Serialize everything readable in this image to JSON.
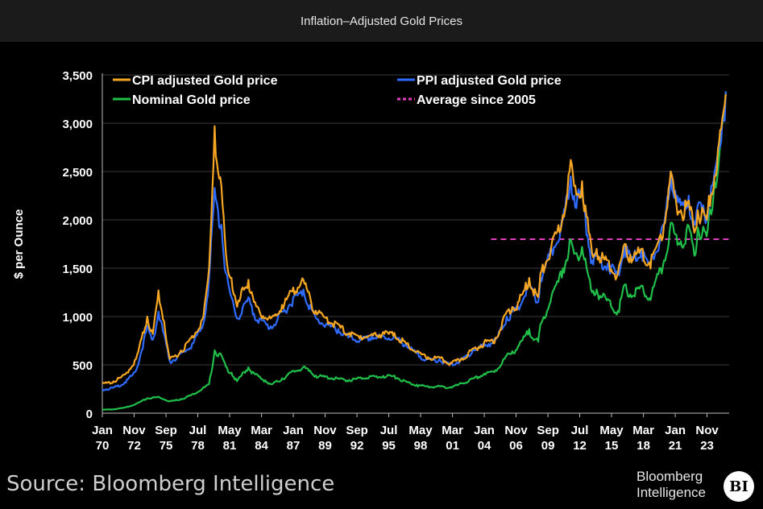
{
  "window": {
    "title": "Inflation–Adjusted Gold Prices"
  },
  "footer": {
    "source": "Source: Bloomberg Intelligence",
    "brand_line1": "Bloomberg",
    "brand_line2": "Intelligence",
    "badge": "BI"
  },
  "chart_data": {
    "type": "line",
    "title": "",
    "xlabel": "",
    "ylabel": "$ per Ounce",
    "ylim": [
      0,
      3500
    ],
    "yticks": [
      0,
      500,
      1000,
      1500,
      2000,
      2500,
      3000,
      3500
    ],
    "ytick_labels": [
      "0",
      "500",
      "1,000",
      "1,500",
      "2,000",
      "2,500",
      "3,000",
      "3,500"
    ],
    "xlim": [
      1970.0,
      2025.8
    ],
    "xticks": [
      {
        "t": 1970.0,
        "l1": "Jan",
        "l2": "70"
      },
      {
        "t": 1972.83,
        "l1": "Nov",
        "l2": "72"
      },
      {
        "t": 1975.67,
        "l1": "Sep",
        "l2": "75"
      },
      {
        "t": 1978.5,
        "l1": "Jul",
        "l2": "78"
      },
      {
        "t": 1981.33,
        "l1": "May",
        "l2": "81"
      },
      {
        "t": 1984.17,
        "l1": "Mar",
        "l2": "84"
      },
      {
        "t": 1987.0,
        "l1": "Jan",
        "l2": "87"
      },
      {
        "t": 1989.83,
        "l1": "Nov",
        "l2": "89"
      },
      {
        "t": 1992.67,
        "l1": "Sep",
        "l2": "92"
      },
      {
        "t": 1995.5,
        "l1": "Jul",
        "l2": "95"
      },
      {
        "t": 1998.33,
        "l1": "May",
        "l2": "98"
      },
      {
        "t": 2001.17,
        "l1": "Mar",
        "l2": "01"
      },
      {
        "t": 2004.0,
        "l1": "Jan",
        "l2": "04"
      },
      {
        "t": 2006.83,
        "l1": "Nov",
        "l2": "06"
      },
      {
        "t": 2009.67,
        "l1": "Sep",
        "l2": "09"
      },
      {
        "t": 2012.5,
        "l1": "Jul",
        "l2": "12"
      },
      {
        "t": 2015.33,
        "l1": "May",
        "l2": "15"
      },
      {
        "t": 2018.17,
        "l1": "Mar",
        "l2": "18"
      },
      {
        "t": 2021.0,
        "l1": "Jan",
        "l2": "21"
      },
      {
        "t": 2023.83,
        "l1": "Nov",
        "l2": "23"
      }
    ],
    "legend": [
      {
        "name": "CPI adjusted Gold price",
        "color": "#f5a623",
        "style": "solid"
      },
      {
        "name": "PPI adjusted Gold price",
        "color": "#2f6bff",
        "style": "solid"
      },
      {
        "name": "Nominal Gold price",
        "color": "#1fbf4a",
        "style": "solid"
      },
      {
        "name": "Average since 2005",
        "color": "#e040c0",
        "style": "dashed"
      }
    ],
    "series": [
      {
        "name": "Nominal Gold price",
        "color": "#1fbf4a",
        "points": [
          [
            1970,
            36
          ],
          [
            1971,
            40
          ],
          [
            1972,
            58
          ],
          [
            1973,
            97
          ],
          [
            1974,
            155
          ],
          [
            1975,
            170
          ],
          [
            1976,
            125
          ],
          [
            1977,
            147
          ],
          [
            1978,
            195
          ],
          [
            1979.5,
            300
          ],
          [
            1980,
            650
          ],
          [
            1980.6,
            600
          ],
          [
            1981,
            480
          ],
          [
            1981.5,
            420
          ],
          [
            1982,
            330
          ],
          [
            1982.5,
            420
          ],
          [
            1983,
            475
          ],
          [
            1983.5,
            415
          ],
          [
            1984,
            380
          ],
          [
            1984.5,
            340
          ],
          [
            1985,
            300
          ],
          [
            1986,
            360
          ],
          [
            1987,
            440
          ],
          [
            1987.9,
            480
          ],
          [
            1988.5,
            440
          ],
          [
            1989,
            390
          ],
          [
            1990,
            380
          ],
          [
            1991,
            360
          ],
          [
            1992,
            345
          ],
          [
            1993,
            370
          ],
          [
            1994,
            385
          ],
          [
            1995,
            385
          ],
          [
            1996,
            388
          ],
          [
            1997,
            330
          ],
          [
            1998,
            295
          ],
          [
            1999,
            278
          ],
          [
            2000,
            280
          ],
          [
            2001,
            270
          ],
          [
            2002,
            310
          ],
          [
            2003,
            360
          ],
          [
            2004,
            410
          ],
          [
            2005,
            445
          ],
          [
            2006,
            600
          ],
          [
            2006.5,
            640
          ],
          [
            2007,
            690
          ],
          [
            2008,
            870
          ],
          [
            2008.8,
            740
          ],
          [
            2009,
            920
          ],
          [
            2010,
            1220
          ],
          [
            2011,
            1500
          ],
          [
            2011.7,
            1800
          ],
          [
            2012,
            1650
          ],
          [
            2012.7,
            1720
          ],
          [
            2013,
            1600
          ],
          [
            2013.6,
            1250
          ],
          [
            2014,
            1280
          ],
          [
            2015,
            1180
          ],
          [
            2015.9,
            1060
          ],
          [
            2016.5,
            1330
          ],
          [
            2017,
            1230
          ],
          [
            2018,
            1320
          ],
          [
            2018.7,
            1190
          ],
          [
            2019,
            1300
          ],
          [
            2019.7,
            1500
          ],
          [
            2020,
            1580
          ],
          [
            2020.6,
            1970
          ],
          [
            2021,
            1850
          ],
          [
            2021.5,
            1780
          ],
          [
            2022.2,
            1940
          ],
          [
            2022.8,
            1640
          ],
          [
            2023,
            1920
          ],
          [
            2023.5,
            1930
          ],
          [
            2023.8,
            1830
          ],
          [
            2024,
            2060
          ],
          [
            2024.5,
            2400
          ],
          [
            2024.9,
            2650
          ],
          [
            2025.2,
            3000
          ],
          [
            2025.5,
            3330
          ]
        ]
      },
      {
        "name": "PPI adjusted Gold price",
        "color": "#2f6bff",
        "points": [
          [
            1970,
            250
          ],
          [
            1971,
            265
          ],
          [
            1972,
            320
          ],
          [
            1973,
            440
          ],
          [
            1974,
            900
          ],
          [
            1974.5,
            760
          ],
          [
            1975,
            1050
          ],
          [
            1975.5,
            820
          ],
          [
            1976,
            540
          ],
          [
            1977,
            620
          ],
          [
            1978,
            720
          ],
          [
            1979,
            930
          ],
          [
            1979.5,
            1400
          ],
          [
            1980,
            2330
          ],
          [
            1980.3,
            2100
          ],
          [
            1980.6,
            1950
          ],
          [
            1981,
            1450
          ],
          [
            1981.5,
            1200
          ],
          [
            1982,
            980
          ],
          [
            1982.5,
            1100
          ],
          [
            1983,
            1200
          ],
          [
            1983.5,
            1030
          ],
          [
            1984,
            980
          ],
          [
            1985,
            900
          ],
          [
            1986,
            1050
          ],
          [
            1987,
            1200
          ],
          [
            1987.9,
            1280
          ],
          [
            1988.5,
            1120
          ],
          [
            1989,
            990
          ],
          [
            1990,
            930
          ],
          [
            1991,
            870
          ],
          [
            1992,
            790
          ],
          [
            1993,
            770
          ],
          [
            1994,
            800
          ],
          [
            1995,
            800
          ],
          [
            1996,
            800
          ],
          [
            1997,
            720
          ],
          [
            1998,
            620
          ],
          [
            1999,
            560
          ],
          [
            2000,
            560
          ],
          [
            2001,
            510
          ],
          [
            2002,
            560
          ],
          [
            2003,
            660
          ],
          [
            2004,
            720
          ],
          [
            2005,
            760
          ],
          [
            2006,
            1000
          ],
          [
            2006.5,
            1050
          ],
          [
            2007,
            1100
          ],
          [
            2008,
            1350
          ],
          [
            2008.8,
            1150
          ],
          [
            2009,
            1400
          ],
          [
            2010,
            1700
          ],
          [
            2011,
            2000
          ],
          [
            2011.7,
            2450
          ],
          [
            2012,
            2250
          ],
          [
            2012.7,
            2300
          ],
          [
            2013,
            2050
          ],
          [
            2013.6,
            1580
          ],
          [
            2014,
            1650
          ],
          [
            2015,
            1550
          ],
          [
            2015.9,
            1450
          ],
          [
            2016.5,
            1750
          ],
          [
            2017,
            1620
          ],
          [
            2018,
            1700
          ],
          [
            2018.7,
            1550
          ],
          [
            2019,
            1620
          ],
          [
            2019.7,
            1850
          ],
          [
            2020,
            1950
          ],
          [
            2020.6,
            2500
          ],
          [
            2021,
            2300
          ],
          [
            2021.5,
            2150
          ],
          [
            2022.2,
            2250
          ],
          [
            2022.8,
            1950
          ],
          [
            2023,
            2150
          ],
          [
            2023.5,
            2150
          ],
          [
            2023.8,
            2000
          ],
          [
            2024,
            2200
          ],
          [
            2024.5,
            2500
          ],
          [
            2024.9,
            2750
          ],
          [
            2025.2,
            3050
          ],
          [
            2025.5,
            3330
          ]
        ]
      },
      {
        "name": "CPI adjusted Gold price",
        "color": "#f5a623",
        "points": [
          [
            1970,
            310
          ],
          [
            1971,
            330
          ],
          [
            1972,
            400
          ],
          [
            1973,
            560
          ],
          [
            1974,
            1000
          ],
          [
            1974.5,
            820
          ],
          [
            1975,
            1270
          ],
          [
            1975.5,
            950
          ],
          [
            1976,
            560
          ],
          [
            1977,
            650
          ],
          [
            1978,
            800
          ],
          [
            1979,
            1000
          ],
          [
            1979.5,
            1500
          ],
          [
            1980,
            2970
          ],
          [
            1980.3,
            2500
          ],
          [
            1980.6,
            2350
          ],
          [
            1981,
            1650
          ],
          [
            1981.5,
            1400
          ],
          [
            1982,
            1100
          ],
          [
            1982.5,
            1300
          ],
          [
            1983,
            1380
          ],
          [
            1983.5,
            1150
          ],
          [
            1984,
            1050
          ],
          [
            1985,
            980
          ],
          [
            1986,
            1120
          ],
          [
            1987,
            1300
          ],
          [
            1987.9,
            1380
          ],
          [
            1988.5,
            1200
          ],
          [
            1989,
            1060
          ],
          [
            1990,
            990
          ],
          [
            1991,
            920
          ],
          [
            1992,
            830
          ],
          [
            1993,
            800
          ],
          [
            1994,
            820
          ],
          [
            1995,
            840
          ],
          [
            1996,
            830
          ],
          [
            1997,
            730
          ],
          [
            1998,
            640
          ],
          [
            1999,
            580
          ],
          [
            2000,
            580
          ],
          [
            2001,
            520
          ],
          [
            2002,
            570
          ],
          [
            2003,
            670
          ],
          [
            2004,
            740
          ],
          [
            2005,
            780
          ],
          [
            2006,
            1050
          ],
          [
            2006.5,
            1100
          ],
          [
            2007,
            1150
          ],
          [
            2008,
            1400
          ],
          [
            2008.8,
            1200
          ],
          [
            2009,
            1450
          ],
          [
            2010,
            1750
          ],
          [
            2011,
            2050
          ],
          [
            2011.7,
            2620
          ],
          [
            2012,
            2350
          ],
          [
            2012.7,
            2400
          ],
          [
            2013,
            2150
          ],
          [
            2013.6,
            1650
          ],
          [
            2014,
            1700
          ],
          [
            2015,
            1580
          ],
          [
            2015.9,
            1450
          ],
          [
            2016.5,
            1750
          ],
          [
            2017,
            1640
          ],
          [
            2018,
            1700
          ],
          [
            2018.7,
            1560
          ],
          [
            2019,
            1640
          ],
          [
            2019.7,
            1850
          ],
          [
            2020,
            1950
          ],
          [
            2020.6,
            2500
          ],
          [
            2021,
            2250
          ],
          [
            2021.5,
            2100
          ],
          [
            2022.2,
            2200
          ],
          [
            2022.8,
            1900
          ],
          [
            2023,
            2100
          ],
          [
            2023.5,
            2100
          ],
          [
            2023.8,
            2000
          ],
          [
            2024,
            2250
          ],
          [
            2024.5,
            2450
          ],
          [
            2024.9,
            2800
          ],
          [
            2025.2,
            3050
          ],
          [
            2025.5,
            3300
          ]
        ]
      }
    ],
    "reference_line": {
      "name": "Average since 2005",
      "y": 1800,
      "x_start": 2004.6,
      "x_end": 2025.8,
      "color": "#e040c0"
    },
    "grid": true,
    "legend_position": "top"
  }
}
